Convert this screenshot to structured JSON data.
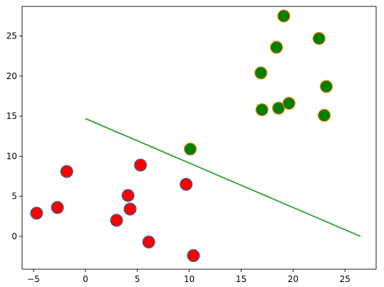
{
  "chart_data": {
    "type": "scatter",
    "title": "",
    "xlabel": "",
    "ylabel": "",
    "xlim": [
      -6.1,
      28.0
    ],
    "ylim": [
      -4.1,
      28.7
    ],
    "xticks": [
      -5,
      0,
      5,
      10,
      15,
      20,
      25
    ],
    "yticks": [
      0,
      5,
      10,
      15,
      20,
      25
    ],
    "grid": false,
    "legend": "none",
    "series": [
      {
        "kind": "scatter",
        "face_color": "#ff0000",
        "edge_color": "#1f77b4",
        "points": [
          [
            -4.7,
            2.9
          ],
          [
            -2.7,
            3.6
          ],
          [
            -1.8,
            8.1
          ],
          [
            3.0,
            2.0
          ],
          [
            4.1,
            5.1
          ],
          [
            4.3,
            3.4
          ],
          [
            5.3,
            8.9
          ],
          [
            6.1,
            -0.7
          ],
          [
            9.7,
            6.5
          ],
          [
            10.4,
            -2.4
          ]
        ]
      },
      {
        "kind": "scatter",
        "face_color": "#008000",
        "edge_color": "#ff7f0e",
        "points": [
          [
            10.1,
            10.9
          ],
          [
            16.9,
            20.4
          ],
          [
            17.0,
            15.8
          ],
          [
            18.4,
            23.6
          ],
          [
            18.6,
            16.0
          ],
          [
            19.1,
            27.5
          ],
          [
            19.6,
            16.6
          ],
          [
            22.5,
            24.7
          ],
          [
            23.0,
            15.1
          ],
          [
            23.2,
            18.7
          ]
        ]
      },
      {
        "kind": "line",
        "color": "#2ca02c",
        "points": [
          [
            0.0,
            14.7
          ],
          [
            26.5,
            0.0
          ]
        ]
      }
    ]
  }
}
